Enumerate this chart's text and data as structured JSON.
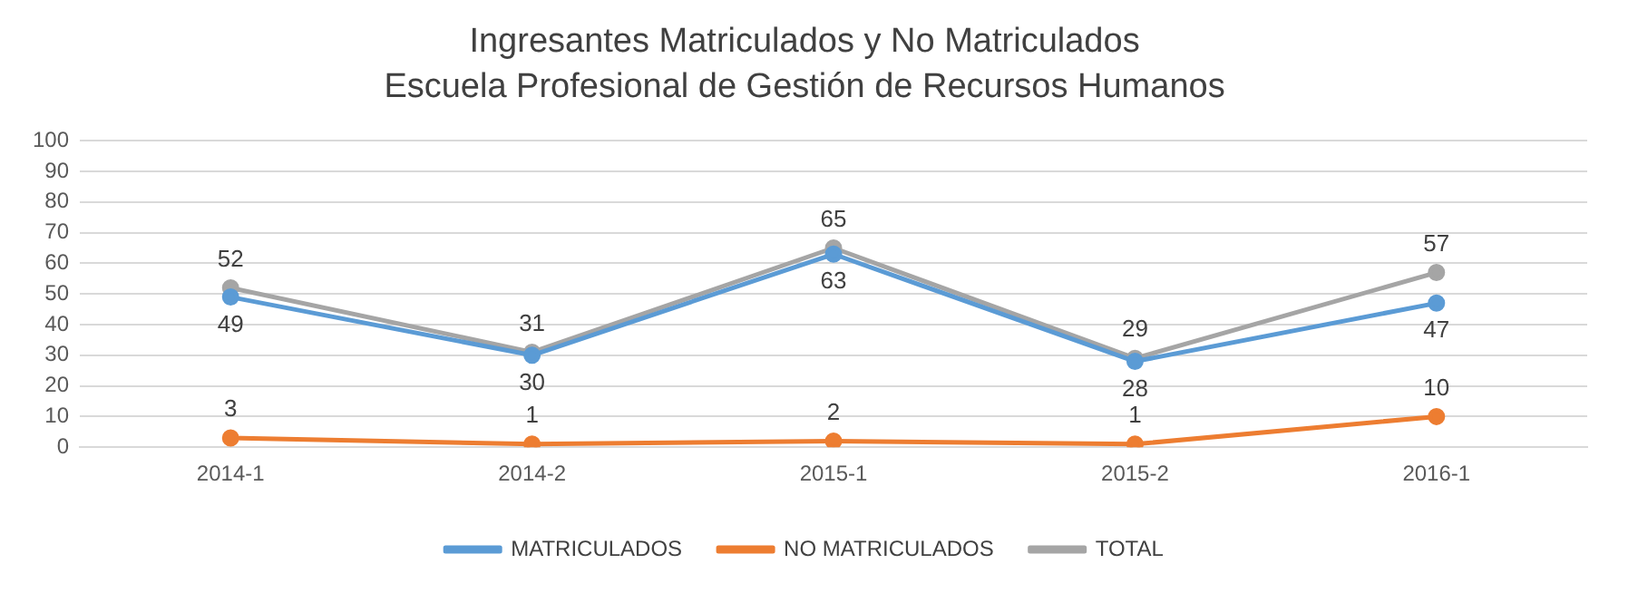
{
  "chart_data": {
    "type": "line",
    "title": "Ingresantes Matriculados y No Matriculados",
    "subtitle": "Escuela Profesional de Gestión de Recursos Humanos",
    "categories": [
      "2014-1",
      "2014-2",
      "2015-1",
      "2015-2",
      "2016-1"
    ],
    "series": [
      {
        "name": "MATRICULADOS",
        "color": "#5b9bd5",
        "values": [
          49,
          30,
          63,
          28,
          47
        ]
      },
      {
        "name": "NO MATRICULADOS",
        "color": "#ed7d31",
        "values": [
          3,
          1,
          2,
          1,
          10
        ]
      },
      {
        "name": "TOTAL",
        "color": "#a5a5a5",
        "values": [
          52,
          31,
          65,
          29,
          57
        ]
      }
    ],
    "ylim": [
      0,
      100
    ],
    "yticks": [
      0,
      10,
      20,
      30,
      40,
      50,
      60,
      70,
      80,
      90,
      100
    ],
    "grid": "y",
    "legend": "bottom",
    "marker": "circle",
    "line_style": "solid",
    "data_labels": true
  }
}
